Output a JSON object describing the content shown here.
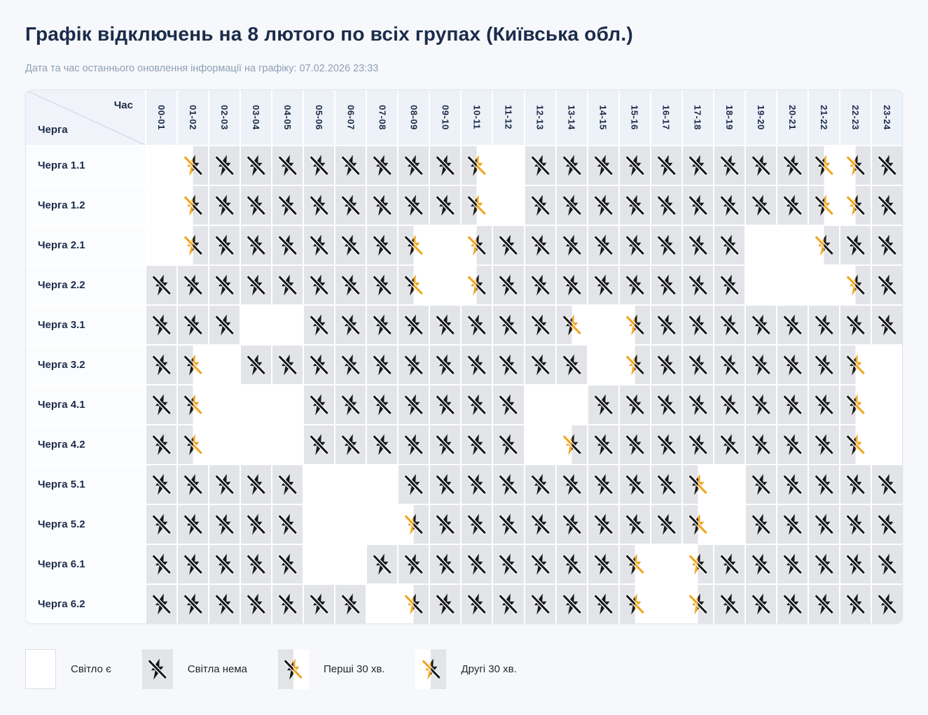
{
  "page": {
    "title": "Графік відключень на 8 лютого по всіх групах (Київська обл.)",
    "subtitle": "Дата та час останнього оновлення інформації на графіку: 07.02.2026 23:33"
  },
  "schedule": {
    "corner_time_label": "Час",
    "corner_queue_label": "Черга"
  },
  "legend": [
    {
      "state": "on",
      "label": "Світло є"
    },
    {
      "state": "off",
      "label": "Світла нема"
    },
    {
      "state": "first30",
      "label": "Перші 30 хв."
    },
    {
      "state": "second30",
      "label": "Другі 30 хв."
    }
  ],
  "colors": {
    "accent_yellow": "#F0A41F",
    "outage_gray": "#E2E4E8",
    "heading_navy": "#1B2B4B",
    "header_bg": "#EDF1F8"
  },
  "chart_data": {
    "type": "heatmap",
    "title": "Графік відключень на 8 лютого по всіх групах (Київська обл.)",
    "updated": "07.02.2026 23:33",
    "x_labels": [
      "00-01",
      "01-02",
      "02-03",
      "03-04",
      "04-05",
      "05-06",
      "06-07",
      "07-08",
      "08-09",
      "09-10",
      "10-11",
      "11-12",
      "12-13",
      "13-14",
      "14-15",
      "15-16",
      "16-17",
      "17-18",
      "18-19",
      "19-20",
      "20-21",
      "21-22",
      "22-23",
      "23-24"
    ],
    "y_labels": [
      "Черга 1.1",
      "Черга 1.2",
      "Черга 2.1",
      "Черга 2.2",
      "Черга 3.1",
      "Черга 3.2",
      "Черга 4.1",
      "Черга 4.2",
      "Черга 5.1",
      "Черга 5.2",
      "Черга 6.1",
      "Черга 6.2"
    ],
    "cell_states_legend": {
      "on": "Світло є",
      "off": "Світла нема",
      "first30": "Перші 30 хв.",
      "second30": "Другі 30 хв."
    },
    "values": [
      [
        "on",
        "second30",
        "off",
        "off",
        "off",
        "off",
        "off",
        "off",
        "off",
        "off",
        "first30",
        "on",
        "off",
        "off",
        "off",
        "off",
        "off",
        "off",
        "off",
        "off",
        "off",
        "first30",
        "second30",
        "off"
      ],
      [
        "on",
        "second30",
        "off",
        "off",
        "off",
        "off",
        "off",
        "off",
        "off",
        "off",
        "first30",
        "on",
        "off",
        "off",
        "off",
        "off",
        "off",
        "off",
        "off",
        "off",
        "off",
        "first30",
        "second30",
        "off"
      ],
      [
        "on",
        "second30",
        "off",
        "off",
        "off",
        "off",
        "off",
        "off",
        "first30",
        "on",
        "second30",
        "off",
        "off",
        "off",
        "off",
        "off",
        "off",
        "off",
        "off",
        "on",
        "on",
        "second30",
        "off",
        "off"
      ],
      [
        "off",
        "off",
        "off",
        "off",
        "off",
        "off",
        "off",
        "off",
        "first30",
        "on",
        "second30",
        "off",
        "off",
        "off",
        "off",
        "off",
        "off",
        "off",
        "off",
        "on",
        "on",
        "on",
        "second30",
        "off"
      ],
      [
        "off",
        "off",
        "off",
        "on",
        "on",
        "off",
        "off",
        "off",
        "off",
        "off",
        "off",
        "off",
        "off",
        "first30",
        "on",
        "second30",
        "off",
        "off",
        "off",
        "off",
        "off",
        "off",
        "off",
        "off"
      ],
      [
        "off",
        "first30",
        "on",
        "off",
        "off",
        "off",
        "off",
        "off",
        "off",
        "off",
        "off",
        "off",
        "off",
        "off",
        "on",
        "second30",
        "off",
        "off",
        "off",
        "off",
        "off",
        "off",
        "first30",
        "on"
      ],
      [
        "off",
        "first30",
        "on",
        "on",
        "on",
        "off",
        "off",
        "off",
        "off",
        "off",
        "off",
        "off",
        "on",
        "on",
        "off",
        "off",
        "off",
        "off",
        "off",
        "off",
        "off",
        "off",
        "first30",
        "on"
      ],
      [
        "off",
        "first30",
        "on",
        "on",
        "on",
        "off",
        "off",
        "off",
        "off",
        "off",
        "off",
        "off",
        "on",
        "second30",
        "off",
        "off",
        "off",
        "off",
        "off",
        "off",
        "off",
        "off",
        "first30",
        "on"
      ],
      [
        "off",
        "off",
        "off",
        "off",
        "off",
        "on",
        "on",
        "on",
        "off",
        "off",
        "off",
        "off",
        "off",
        "off",
        "off",
        "off",
        "off",
        "first30",
        "on",
        "off",
        "off",
        "off",
        "off",
        "off"
      ],
      [
        "off",
        "off",
        "off",
        "off",
        "off",
        "on",
        "on",
        "on",
        "second30",
        "off",
        "off",
        "off",
        "off",
        "off",
        "off",
        "off",
        "off",
        "first30",
        "on",
        "off",
        "off",
        "off",
        "off",
        "off"
      ],
      [
        "off",
        "off",
        "off",
        "off",
        "off",
        "on",
        "on",
        "off",
        "off",
        "off",
        "off",
        "off",
        "off",
        "off",
        "off",
        "first30",
        "on",
        "second30",
        "off",
        "off",
        "off",
        "off",
        "off",
        "off"
      ],
      [
        "off",
        "off",
        "off",
        "off",
        "off",
        "off",
        "off",
        "on",
        "second30",
        "off",
        "off",
        "off",
        "off",
        "off",
        "off",
        "first30",
        "on",
        "second30",
        "off",
        "off",
        "off",
        "off",
        "off",
        "off"
      ]
    ]
  }
}
